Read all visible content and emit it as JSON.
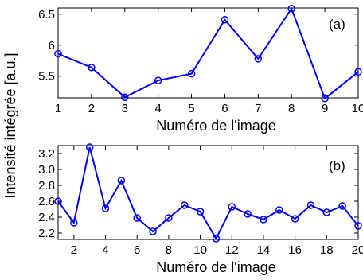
{
  "shared_ylabel": "Intensité intégrée [a.u.]",
  "chart_data": [
    {
      "type": "line",
      "panel_tag": "(a)",
      "xlabel": "Numéro de l'image",
      "ylabel": "",
      "xlim": [
        1,
        10
      ],
      "ylim": [
        5.15,
        6.6
      ],
      "xticks": [
        1,
        2,
        3,
        4,
        5,
        6,
        7,
        8,
        9,
        10
      ],
      "xtick_labels": [
        "1",
        "2",
        "3",
        "4",
        "5",
        "6",
        "7",
        "8",
        "9",
        "10"
      ],
      "yticks": [
        5.5,
        6,
        6.5
      ],
      "ytick_labels": [
        "5.5",
        "6",
        "6.5"
      ],
      "color": "#0000ff",
      "marker": "circle",
      "series": [
        {
          "x": [
            1,
            2,
            3,
            4,
            5,
            6,
            7,
            8,
            9,
            10
          ],
          "y": [
            5.86,
            5.64,
            5.16,
            5.43,
            5.54,
            6.41,
            5.78,
            6.59,
            5.14,
            5.57
          ]
        }
      ]
    },
    {
      "type": "line",
      "panel_tag": "(b)",
      "xlabel": "Numéro de l'image",
      "ylabel": "",
      "xlim": [
        1,
        20
      ],
      "ylim": [
        2.12,
        3.3
      ],
      "xticks": [
        2,
        4,
        6,
        8,
        10,
        12,
        14,
        16,
        18,
        20
      ],
      "xtick_labels": [
        "2",
        "4",
        "6",
        "8",
        "10",
        "12",
        "14",
        "16",
        "18",
        "20"
      ],
      "yticks": [
        2.2,
        2.4,
        2.6,
        2.8,
        3.0,
        3.2
      ],
      "ytick_labels": [
        "2.2",
        "2.4",
        "2.6",
        "2.8",
        "3.0",
        "3.2"
      ],
      "color": "#0000ff",
      "marker": "circle",
      "series": [
        {
          "x": [
            1,
            2,
            3,
            4,
            5,
            6,
            7,
            8,
            9,
            10,
            11,
            12,
            13,
            14,
            15,
            16,
            17,
            18,
            19,
            20
          ],
          "y": [
            2.6,
            2.33,
            3.28,
            2.51,
            2.86,
            2.39,
            2.22,
            2.39,
            2.55,
            2.47,
            2.13,
            2.53,
            2.44,
            2.37,
            2.49,
            2.38,
            2.55,
            2.46,
            2.54,
            2.29
          ]
        }
      ]
    }
  ]
}
